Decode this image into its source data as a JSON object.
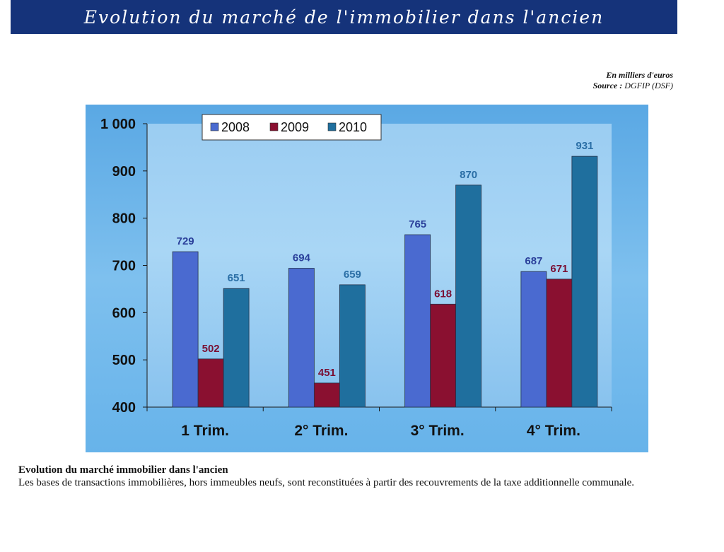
{
  "header": {
    "title": "Evolution du marché de l'immobilier dans l'ancien"
  },
  "meta": {
    "unit": "En milliers d'euros",
    "source_label": "Source :",
    "source_value": "DGFIP (DSF)"
  },
  "chart_data": {
    "type": "bar",
    "title": "",
    "xlabel": "",
    "ylabel": "",
    "categories": [
      "1 Trim.",
      "2° Trim.",
      "3° Trim.",
      "4° Trim."
    ],
    "series": [
      {
        "name": "2008",
        "values": [
          729,
          694,
          765,
          687
        ],
        "color": "#4a6ad0",
        "label_color": "#2a3f9a"
      },
      {
        "name": "2009",
        "values": [
          502,
          451,
          618,
          671
        ],
        "color": "#8a1030",
        "label_color": "#7a1034"
      },
      {
        "name": "2010",
        "values": [
          651,
          659,
          870,
          931
        ],
        "color": "#1f6f9e",
        "label_color": "#2b6fa6"
      }
    ],
    "ylim": [
      400,
      1000
    ],
    "yticks": [
      400,
      500,
      600,
      700,
      800,
      900,
      1000
    ],
    "ytick_labels": [
      "400",
      "500",
      "600",
      "700",
      "800",
      "900",
      "1 000"
    ],
    "grid": false,
    "legend_position": "top-left",
    "data_labels": true
  },
  "caption": {
    "title": "Evolution du marché immobilier dans l'ancien",
    "text": "Les bases de transactions immobilières, hors immeubles neufs, sont reconstituées à partir des recouvrements de la taxe additionnelle communale."
  },
  "colors": {
    "banner": "#15337a",
    "panel_outer": "#5fb0e8",
    "plot_area": "#8cc6ef"
  }
}
